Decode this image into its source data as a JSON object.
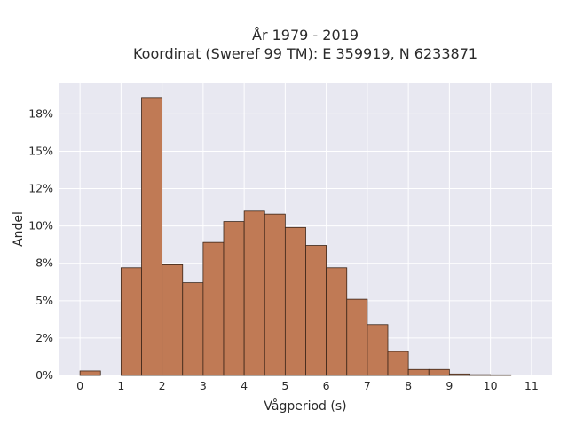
{
  "chart_data": {
    "type": "bar",
    "title_line1": "År 1979 - 2019",
    "title_line2": "Koordinat (Sweref 99 TM): E 359919, N 6233871",
    "xlabel": "Vågperiod (s)",
    "ylabel": "Andel",
    "bin_width": 0.5,
    "bins": [
      {
        "start": 0.0,
        "value": 0.3
      },
      {
        "start": 0.5,
        "value": 0.0
      },
      {
        "start": 1.0,
        "value": 7.2
      },
      {
        "start": 1.5,
        "value": 18.6
      },
      {
        "start": 2.0,
        "value": 7.4
      },
      {
        "start": 2.5,
        "value": 6.2
      },
      {
        "start": 3.0,
        "value": 8.9
      },
      {
        "start": 3.5,
        "value": 10.3
      },
      {
        "start": 4.0,
        "value": 11.0
      },
      {
        "start": 4.5,
        "value": 10.8
      },
      {
        "start": 5.0,
        "value": 9.9
      },
      {
        "start": 5.5,
        "value": 8.7
      },
      {
        "start": 6.0,
        "value": 7.2
      },
      {
        "start": 6.5,
        "value": 5.1
      },
      {
        "start": 7.0,
        "value": 3.4
      },
      {
        "start": 7.5,
        "value": 1.6
      },
      {
        "start": 8.0,
        "value": 0.4
      },
      {
        "start": 8.5,
        "value": 0.4
      },
      {
        "start": 9.0,
        "value": 0.1
      },
      {
        "start": 9.5,
        "value": 0.05
      },
      {
        "start": 10.0,
        "value": 0.04
      },
      {
        "start": 10.5,
        "value": 0.0
      }
    ],
    "xlim": [
      -0.5,
      11.5
    ],
    "ylim": [
      0,
      19.6
    ],
    "x_ticks": [
      0,
      1,
      2,
      3,
      4,
      5,
      6,
      7,
      8,
      9,
      10,
      11
    ],
    "y_ticks": [
      {
        "value": 0,
        "label": "0%"
      },
      {
        "value": 2.5,
        "label": "2%"
      },
      {
        "value": 5,
        "label": "5%"
      },
      {
        "value": 7.5,
        "label": "8%"
      },
      {
        "value": 10,
        "label": "10%"
      },
      {
        "value": 12.5,
        "label": "12%"
      },
      {
        "value": 15,
        "label": "15%"
      },
      {
        "value": 17.5,
        "label": "18%"
      }
    ],
    "grid": true,
    "colors": {
      "bar_fill": "#c07a55",
      "bar_stroke": "#3b2518",
      "plot_bg": "#e8e8f1",
      "grid": "#ffffff"
    }
  }
}
